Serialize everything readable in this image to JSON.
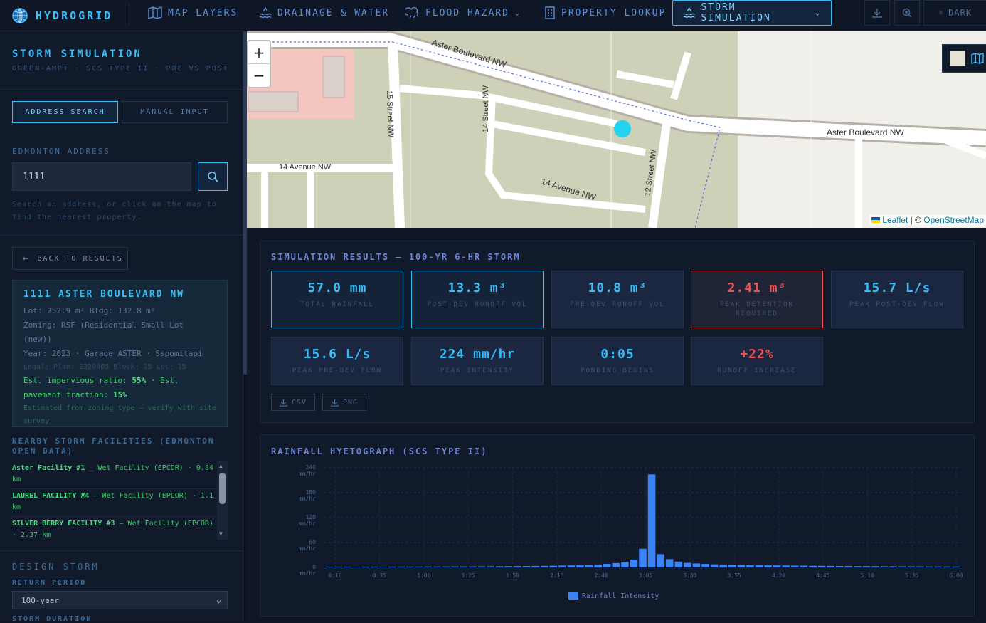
{
  "topbar": {
    "brand": "HYDROGRID",
    "nav": [
      {
        "label": "MAP LAYERS",
        "icon": "map-icon"
      },
      {
        "label": "DRAINAGE & WATER",
        "icon": "water-icon"
      },
      {
        "label": "FLOOD HAZARD",
        "icon": "flood-icon"
      },
      {
        "label": "PROPERTY LOOKUP",
        "icon": "building-icon"
      },
      {
        "label": "STORM SIMULATION",
        "icon": "water-icon"
      }
    ],
    "theme_label": "DARK"
  },
  "sidebar": {
    "title": "STORM SIMULATION",
    "subtitle": "GREEN-AMPT · SCS TYPE II · PRE VS POST",
    "tabs": [
      "ADDRESS SEARCH",
      "MANUAL INPUT"
    ],
    "address_label": "EDMONTON ADDRESS",
    "address_value": "1111",
    "hint": "Search an address, or click on the map to find the nearest property.",
    "back_label": "BACK TO RESULTS",
    "property": {
      "title": "1111 ASTER BOULEVARD NW",
      "lot_bldg": "Lot: 252.9 m²  Bldg: 132.8 m²",
      "zoning": "Zoning: RSF (Residential Small Lot (new))",
      "year": "Year: 2023 · Garage  ASTER · Sspomitapi",
      "legal": "Legal: Plan: 2320465 Block: 15 Lot: 15",
      "imp_prefix": "Est. impervious ratio: ",
      "imp_value": "55%",
      "pav_prefix": " · Est. pavement fraction: ",
      "pav_value": "15%",
      "note": "Estimated from zoning type — verify with site survey"
    },
    "facilities_heading": "NEARBY STORM FACILITIES (EDMONTON OPEN DATA)",
    "facilities": [
      {
        "name": "Aster Facility #1",
        "rest": " — Wet Facility (EPCOR) · 0.84 km"
      },
      {
        "name": "LAUREL FACILITY #4",
        "rest": " — Wet Facility (EPCOR) · 1.1 km"
      },
      {
        "name": "SILVER BERRY FACILITY #3",
        "rest": " — Wet Facility (EPCOR) · 2.37 km"
      }
    ],
    "design_storm": "DESIGN STORM",
    "return_period_label": "RETURN PERIOD",
    "return_period_value": "100-year",
    "storm_duration_label": "STORM DURATION"
  },
  "map": {
    "streets": {
      "aster_top": "Aster Boulevard NW",
      "aster_right": "Aster Boulevard NW",
      "st15": "15 Street NW",
      "st14": "14 Street NW",
      "st12": "12 Street NW",
      "ave14_left": "14 Avenue NW",
      "ave14_mid": "14 Avenue NW"
    },
    "zoom_in": "+",
    "zoom_out": "−",
    "attribution_leaflet": "Leaflet",
    "attribution_sep": " | © ",
    "attribution_osm": "OpenStreetMap"
  },
  "results": {
    "title": "SIMULATION RESULTS — 100-YR 6-HR STORM",
    "metrics": [
      {
        "value": "57.0 mm",
        "label": "TOTAL RAINFALL",
        "style": "hi"
      },
      {
        "value": "13.3 m³",
        "label": "POST-DEV RUNOFF VOL",
        "style": "hi"
      },
      {
        "value": "10.8 m³",
        "label": "PRE-DEV RUNOFF VOL",
        "style": ""
      },
      {
        "value": "2.41 m³",
        "label": "PEAK DETENTION REQUIRED",
        "style": "warn"
      },
      {
        "value": "15.7 L/s",
        "label": "PEAK POST-DEV FLOW",
        "style": ""
      },
      {
        "value": "15.6 L/s",
        "label": "PEAK PRE-DEV FLOW",
        "style": ""
      },
      {
        "value": "224 mm/hr",
        "label": "PEAK INTENSITY",
        "style": ""
      },
      {
        "value": "0:05",
        "label": "PONDING BEGINS",
        "style": ""
      },
      {
        "value": "+22%",
        "label": "RUNOFF INCREASE",
        "style": "warn-text"
      }
    ],
    "export_csv": "CSV",
    "export_png": "PNG"
  },
  "hyetograph": {
    "title": "RAINFALL HYETOGRAPH (SCS TYPE II)"
  },
  "chart_data": {
    "type": "bar",
    "title": "RAINFALL HYETOGRAPH (SCS TYPE II)",
    "ylim": [
      0,
      240
    ],
    "yticks": [
      "0",
      "60",
      "120",
      "180",
      "240"
    ],
    "yunit": "mm/hr",
    "xticks": [
      "0:10",
      "0:35",
      "1:00",
      "1:25",
      "1:50",
      "2:15",
      "2:40",
      "3:05",
      "3:30",
      "3:55",
      "4:20",
      "4:45",
      "5:10",
      "5:35",
      "6:00"
    ],
    "series": [
      {
        "name": "Rainfall Intensity",
        "color": "#3b82f6",
        "values": [
          1.5,
          1.5,
          1.6,
          1.6,
          1.7,
          1.7,
          1.8,
          1.8,
          1.9,
          1.9,
          2,
          2,
          2.1,
          2.2,
          2.3,
          2.4,
          2.5,
          2.6,
          2.7,
          2.8,
          3,
          3.1,
          3.3,
          3.5,
          3.8,
          4.1,
          4.4,
          4.8,
          5.3,
          6,
          7,
          8.5,
          10.5,
          13.5,
          19,
          45,
          224,
          32,
          20,
          14,
          11,
          9.5,
          8.5,
          7.5,
          7,
          6.5,
          6,
          5.5,
          5.2,
          5,
          4.8,
          4.6,
          4.4,
          4.2,
          4,
          3.8,
          3.6,
          3.4,
          3.2,
          3.1,
          3,
          2.9,
          2.8,
          2.7,
          2.6,
          2.5,
          2.4,
          2.3,
          2.2,
          2.1,
          2
        ]
      }
    ]
  }
}
